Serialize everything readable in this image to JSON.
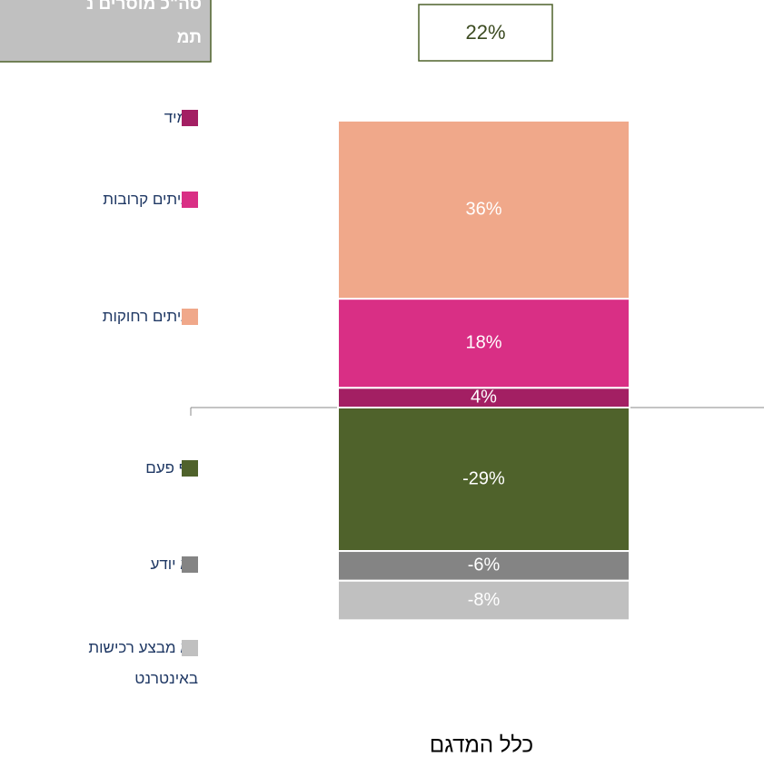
{
  "chart_data": {
    "type": "diverging_stacked_bar",
    "title_lines": [
      "סה\"כ מוסרים נ",
      "תמ"
    ],
    "annotation": "22%",
    "categories": [
      "כלל המדגם"
    ],
    "ylim": [
      -50,
      60
    ],
    "series": [
      {
        "name": "תמיד",
        "color": "#a31f63",
        "values": [
          4
        ],
        "value_labels": [
          "4%"
        ]
      },
      {
        "name": "לעיתים קרובות",
        "color": "#d92f85",
        "values": [
          18
        ],
        "value_labels": [
          "18%"
        ]
      },
      {
        "name": "לעיתים רחוקות",
        "color": "#f0a88a",
        "values": [
          36
        ],
        "value_labels": [
          "36%"
        ]
      },
      {
        "name": "אף פעם",
        "color": "#4f622b",
        "values": [
          -29
        ],
        "value_labels": [
          "-29%"
        ]
      },
      {
        "name": "לא יודע",
        "color": "#848484",
        "values": [
          -6
        ],
        "value_labels": [
          "-6%"
        ]
      },
      {
        "name": "לא מבצע רכישות באינטרנט",
        "color": "#c0c0c0",
        "values": [
          -8
        ],
        "value_labels": [
          "-8%"
        ]
      }
    ]
  }
}
